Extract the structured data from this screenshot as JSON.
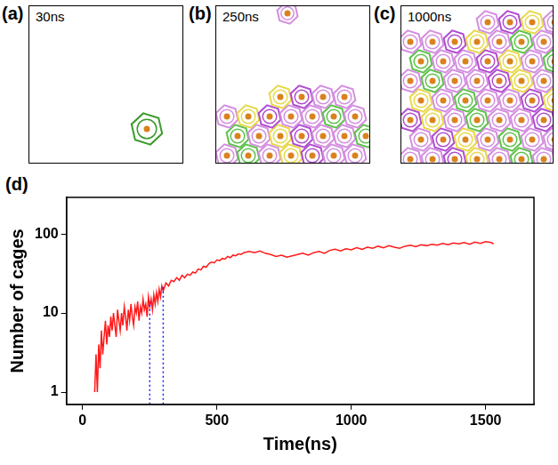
{
  "panels": [
    {
      "letter": "(a)",
      "time": "30ns"
    },
    {
      "letter": "(b)",
      "time": "250ns"
    },
    {
      "letter": "(c)",
      "time": "1000ns"
    }
  ],
  "chart_label": "(d)",
  "chart_data": {
    "type": "line",
    "x_label": "Time(ns)",
    "y_label": "Number of cages",
    "log": "y",
    "grid": false,
    "color": "#ff1a1a",
    "xlim": [
      -60,
      1680
    ],
    "xticks": [
      0,
      500,
      1000,
      1500
    ],
    "ylim": [
      0.73,
      290
    ],
    "yticks": [
      1,
      10,
      100
    ],
    "vlines": [
      {
        "x": 250,
        "y": 14
      },
      {
        "x": 300,
        "y": 22
      }
    ],
    "x": [
      45,
      50,
      55,
      60,
      65,
      70,
      75,
      80,
      85,
      90,
      95,
      100,
      105,
      110,
      115,
      120,
      125,
      130,
      135,
      140,
      145,
      150,
      155,
      160,
      165,
      170,
      175,
      180,
      185,
      190,
      195,
      200,
      205,
      210,
      215,
      220,
      225,
      230,
      235,
      240,
      245,
      250,
      255,
      260,
      265,
      270,
      275,
      280,
      285,
      290,
      295,
      300,
      310,
      320,
      330,
      340,
      350,
      360,
      370,
      380,
      390,
      400,
      410,
      420,
      430,
      440,
      450,
      460,
      470,
      480,
      490,
      500,
      510,
      520,
      530,
      540,
      550,
      560,
      570,
      580,
      590,
      600,
      620,
      640,
      660,
      680,
      700,
      720,
      740,
      760,
      780,
      800,
      820,
      840,
      860,
      880,
      900,
      920,
      940,
      960,
      980,
      1000,
      1020,
      1040,
      1060,
      1080,
      1100,
      1120,
      1140,
      1160,
      1180,
      1200,
      1220,
      1240,
      1260,
      1280,
      1300,
      1320,
      1340,
      1360,
      1380,
      1400,
      1420,
      1440,
      1460,
      1480,
      1500,
      1520,
      1530
    ],
    "values": [
      1,
      3,
      1,
      4,
      2,
      6,
      3,
      5,
      8,
      4,
      7,
      5,
      9,
      6,
      10,
      7,
      5,
      11,
      8,
      6,
      10,
      7,
      12,
      9,
      6,
      11,
      8,
      13,
      9,
      7,
      12,
      10,
      14,
      8,
      12,
      10,
      15,
      11,
      13,
      9,
      16,
      12,
      15,
      11,
      17,
      13,
      18,
      14,
      20,
      16,
      22,
      19,
      24,
      22,
      26,
      25,
      28,
      26,
      30,
      28,
      31,
      30,
      33,
      32,
      36,
      35,
      39,
      38,
      42,
      44,
      43,
      47,
      46,
      49,
      48,
      52,
      50,
      54,
      53,
      56,
      55,
      58,
      60,
      58,
      61,
      57,
      55,
      52,
      54,
      51,
      53,
      55,
      57,
      54,
      58,
      60,
      57,
      62,
      64,
      61,
      65,
      63,
      67,
      64,
      68,
      66,
      70,
      67,
      71,
      68,
      66,
      70,
      72,
      69,
      73,
      71,
      74,
      72,
      76,
      73,
      77,
      75,
      78,
      74,
      79,
      76,
      80,
      78,
      75
    ]
  }
}
